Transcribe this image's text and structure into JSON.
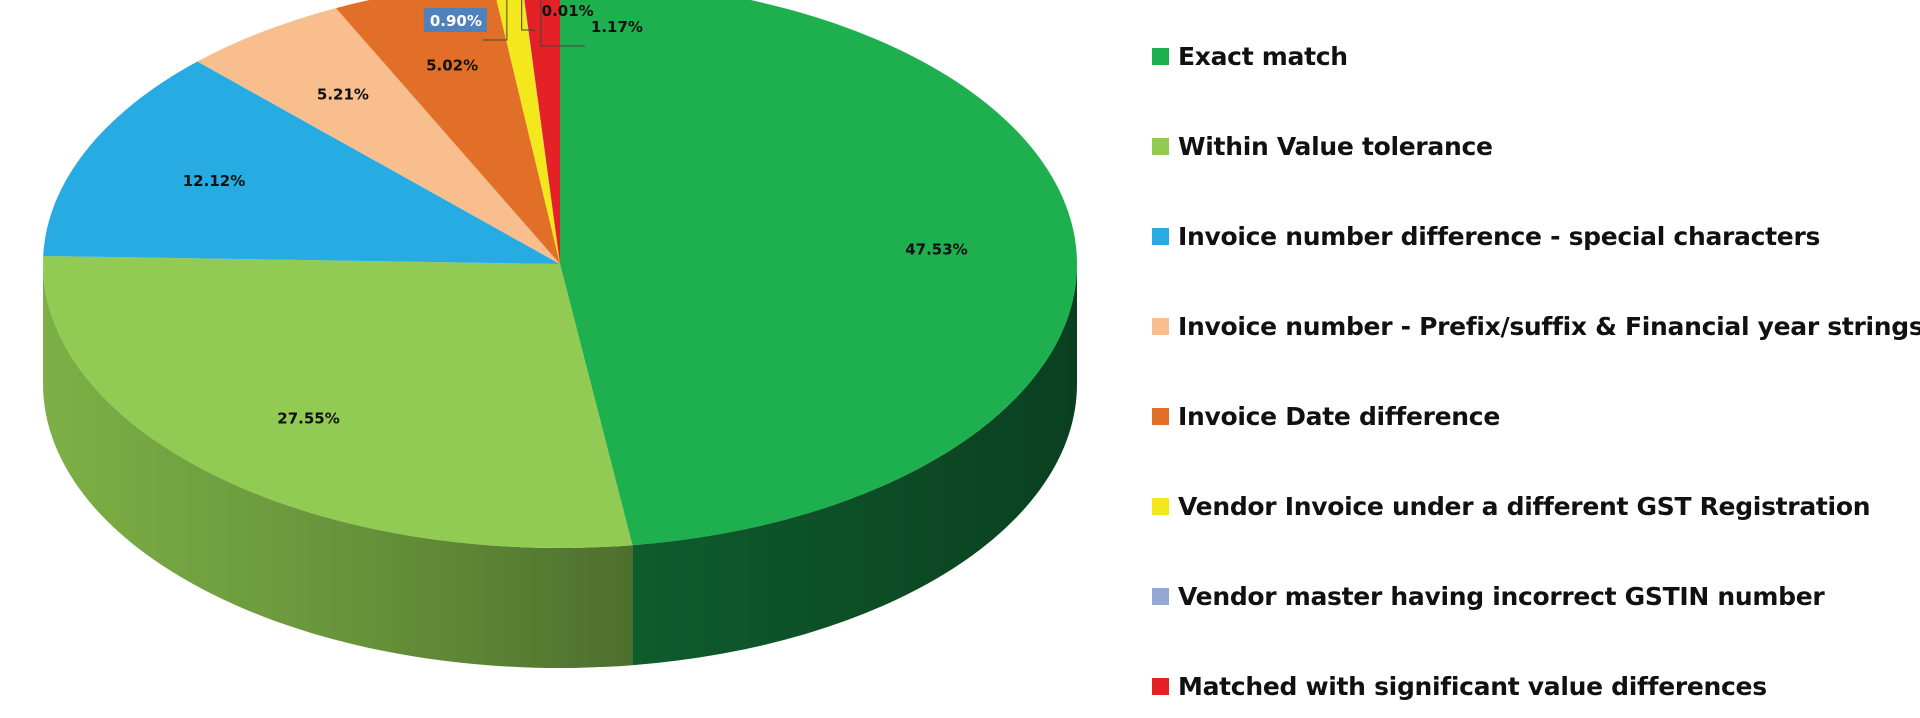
{
  "chart_data": {
    "type": "pie",
    "title": "",
    "slices": [
      {
        "name": "Exact match",
        "value": 47.53,
        "label": "47.53%",
        "color": "#1eaf4f"
      },
      {
        "name": "Within Value tolerance",
        "value": 27.55,
        "label": "27.55%",
        "color": "#92cb54"
      },
      {
        "name": "Invoice number difference - special characters",
        "value": 12.12,
        "label": "12.12%",
        "color": "#26abe3"
      },
      {
        "name": "Invoice number - Prefix/suffix & Financial year strings",
        "value": 5.21,
        "label": "5.21%",
        "color": "#f8be8d"
      },
      {
        "name": "Invoice Date difference",
        "value": 5.02,
        "label": "5.02%",
        "color": "#e26f27"
      },
      {
        "name": "Vendor Invoice under a different GST Registration",
        "value": 0.9,
        "label": "0.90%",
        "color": "#f2e81c"
      },
      {
        "name": "Vendor master having incorrect GSTIN number",
        "value": 0.01,
        "label": "0.01%",
        "color": "#94a8d4"
      },
      {
        "name": "Matched with significant value differences",
        "value": 1.17,
        "label": "1.17%",
        "color": "#e42127"
      }
    ],
    "legend_position": "right",
    "style": "3d-tilted",
    "highlighted_label_color": "#4f81bd"
  }
}
